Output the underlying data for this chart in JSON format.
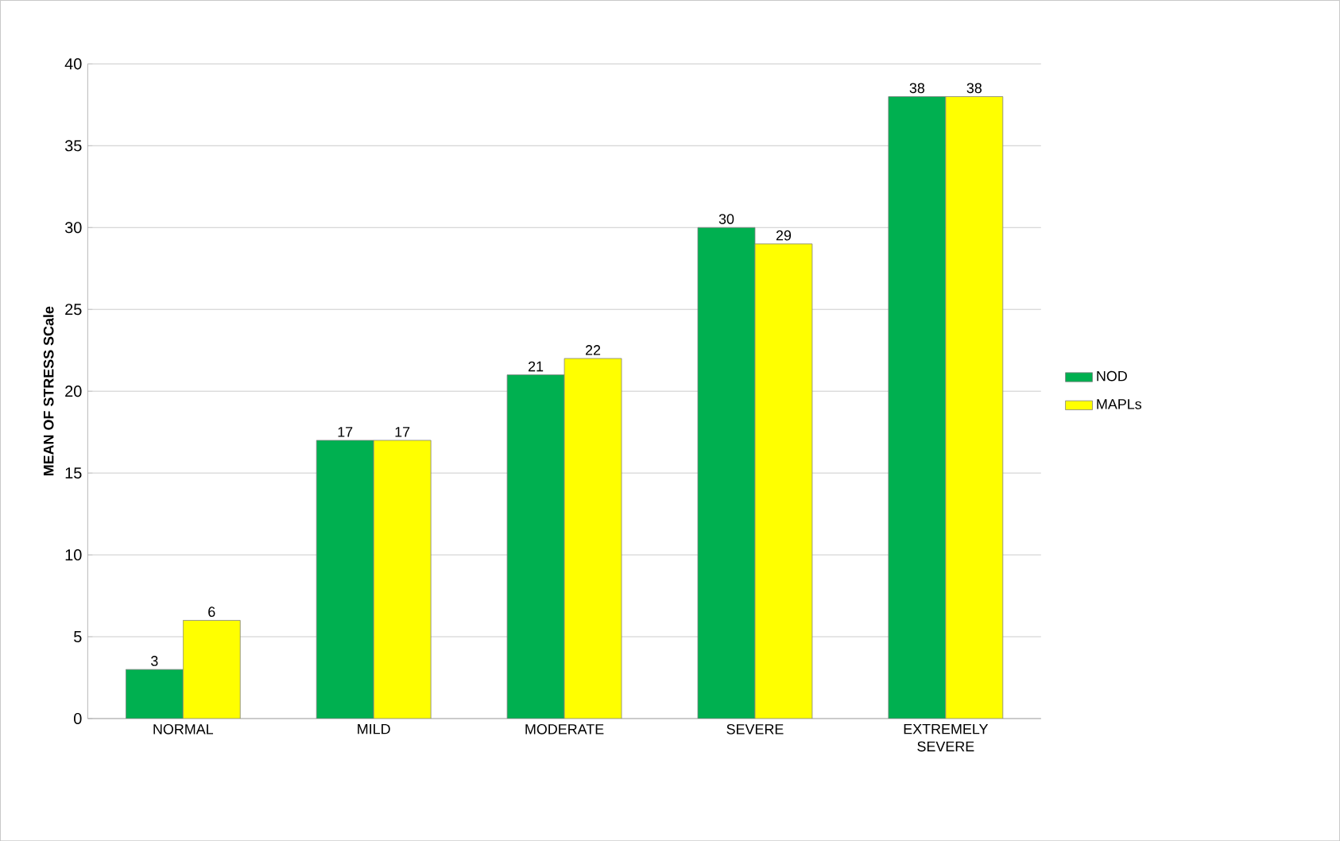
{
  "chart_data": {
    "type": "bar",
    "ylabel": "**MEAN OF STRESS  SCale**",
    "categories": [
      "NORMAL",
      "MILD",
      "MODERATE",
      "SEVERE",
      "EXTREMELY SEVERE"
    ],
    "series": [
      {
        "name": "NOD",
        "color": "#00b050",
        "values": [
          3,
          17,
          21,
          30,
          38
        ]
      },
      {
        "name": "MAPLs",
        "color": "#ffff00",
        "values": [
          6,
          17,
          22,
          29,
          38
        ]
      }
    ],
    "ylim": [
      0,
      40
    ],
    "yticks": [
      0,
      5,
      10,
      15,
      20,
      25,
      30,
      35,
      40
    ],
    "grid": "y",
    "legend": "right",
    "data_labels": true
  }
}
